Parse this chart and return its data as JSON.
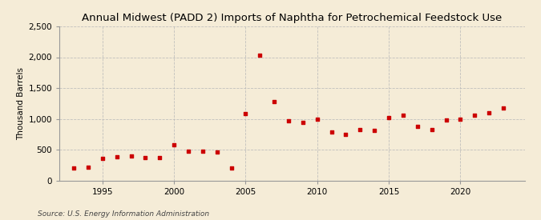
{
  "title": "Annual Midwest (PADD 2) Imports of Naphtha for Petrochemical Feedstock Use",
  "ylabel": "Thousand Barrels",
  "source": "Source: U.S. Energy Information Administration",
  "background_color": "#f5ecd7",
  "plot_background_color": "#f5ecd7",
  "marker_color": "#cc0000",
  "years": [
    1993,
    1994,
    1995,
    1996,
    1997,
    1998,
    1999,
    2000,
    2001,
    2002,
    2003,
    2004,
    2005,
    2006,
    2007,
    2008,
    2009,
    2010,
    2011,
    2012,
    2013,
    2014,
    2015,
    2016,
    2017,
    2018,
    2019,
    2020,
    2021,
    2022,
    2023
  ],
  "values": [
    205,
    215,
    355,
    385,
    390,
    375,
    365,
    580,
    475,
    480,
    460,
    195,
    1090,
    2030,
    1275,
    970,
    940,
    990,
    780,
    745,
    820,
    810,
    1015,
    1060,
    880,
    825,
    985,
    1000,
    1055,
    1095,
    1175
  ],
  "ylim": [
    0,
    2500
  ],
  "xlim": [
    1992,
    2024.5
  ],
  "yticks": [
    0,
    500,
    1000,
    1500,
    2000,
    2500
  ],
  "ytick_labels": [
    "0",
    "500",
    "1,000",
    "1,500",
    "2,000",
    "2,500"
  ],
  "xticks": [
    1995,
    2000,
    2005,
    2010,
    2015,
    2020
  ],
  "title_fontsize": 9.5,
  "label_fontsize": 7.5,
  "tick_fontsize": 7.5,
  "source_fontsize": 6.5,
  "grid_color": "#bbbbbb",
  "spine_color": "#999999"
}
